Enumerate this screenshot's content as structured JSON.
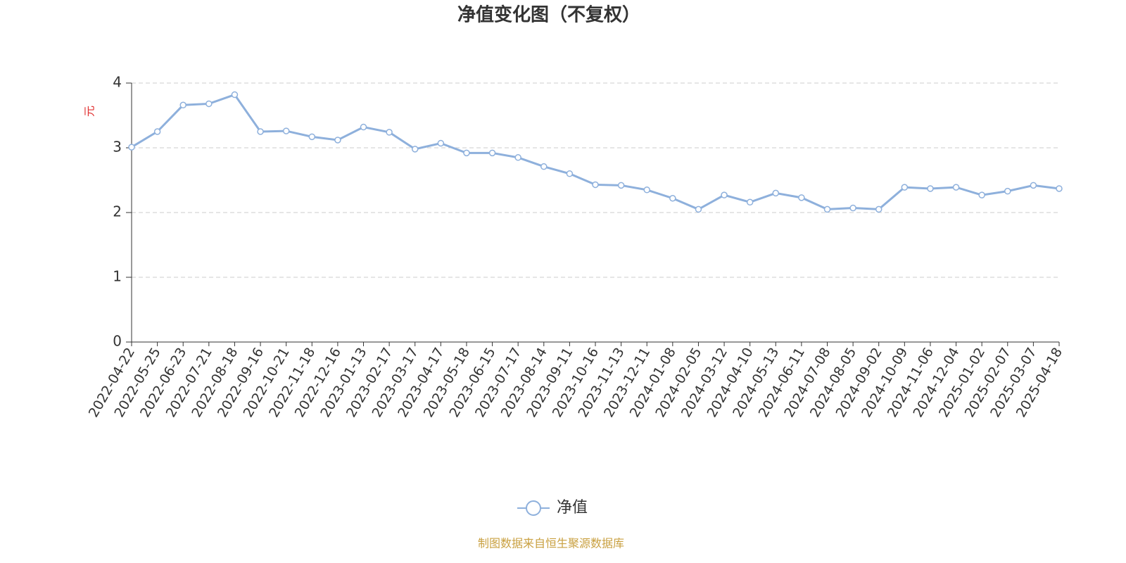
{
  "chart_data": {
    "type": "line",
    "title": "净值变化图（不复权）",
    "y_label": "元",
    "source": "制图数据来自恒生聚源数据库",
    "categories": [
      "2022-04-22",
      "2022-05-25",
      "2022-06-23",
      "2022-07-21",
      "2022-08-18",
      "2022-09-16",
      "2022-10-21",
      "2022-11-18",
      "2022-12-16",
      "2023-01-13",
      "2023-02-17",
      "2023-03-17",
      "2023-04-17",
      "2023-05-18",
      "2023-06-15",
      "2023-07-17",
      "2023-08-14",
      "2023-09-11",
      "2023-10-16",
      "2023-11-13",
      "2023-12-11",
      "2024-01-08",
      "2024-02-05",
      "2024-03-12",
      "2024-04-10",
      "2024-05-13",
      "2024-06-11",
      "2024-07-08",
      "2024-08-05",
      "2024-09-02",
      "2024-10-09",
      "2024-11-06",
      "2024-12-04",
      "2025-01-02",
      "2025-02-07",
      "2025-03-07",
      "2025-04-18"
    ],
    "series": [
      {
        "name": "净值",
        "color": "#8eb0dc",
        "values": [
          3.01,
          3.25,
          3.66,
          3.68,
          3.82,
          3.25,
          3.26,
          3.17,
          3.12,
          3.32,
          3.24,
          2.98,
          3.07,
          2.92,
          2.92,
          2.85,
          2.71,
          2.6,
          2.43,
          2.42,
          2.35,
          2.22,
          2.05,
          2.27,
          2.16,
          2.3,
          2.23,
          2.05,
          2.07,
          2.05,
          2.39,
          2.37,
          2.39,
          2.27,
          2.33,
          2.42,
          2.37
        ]
      }
    ],
    "ylim": [
      0,
      4
    ],
    "yticks": [
      0,
      1,
      2,
      3,
      4
    ],
    "grid": true,
    "legend": "bottom"
  }
}
